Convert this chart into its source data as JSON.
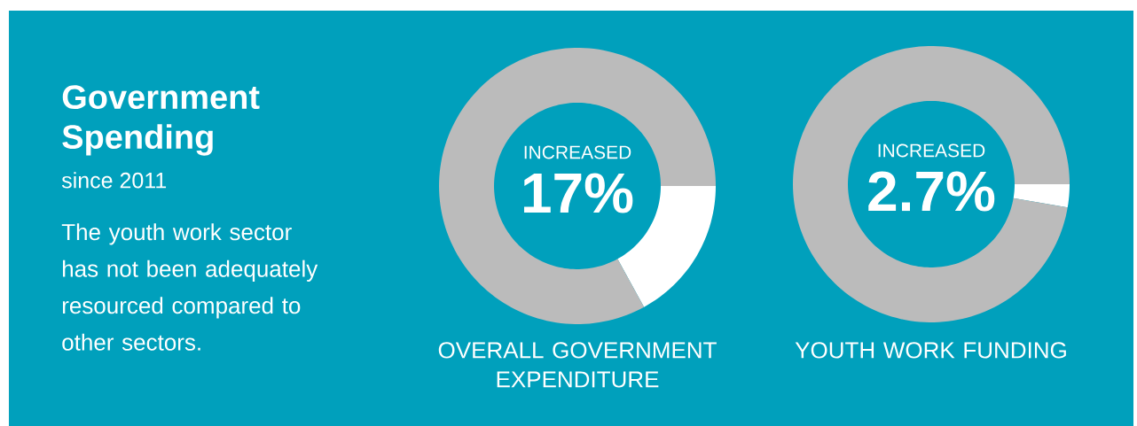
{
  "chart_data": [
    {
      "type": "other",
      "title": "Government Spending",
      "subtitle": "since 2011",
      "annotations": [
        "The youth work sector has not been adequately resourced compared to other sectors."
      ]
    },
    {
      "type": "donut",
      "title": "OVERALL GOVERNMENT EXPENDITURE",
      "categories": [
        null,
        null
      ],
      "values": [
        17,
        83
      ],
      "colors": [
        "#ffffff",
        "#bbbbbb"
      ],
      "annotations": [
        "INCREASED",
        "17%"
      ]
    },
    {
      "type": "donut",
      "title": "YOUTH WORK FUNDING",
      "categories": [
        null,
        null
      ],
      "values": [
        2.7,
        97.3
      ],
      "colors": [
        "#ffffff",
        "#bbbbbb"
      ],
      "annotations": [
        "INCREASED",
        "2.7%"
      ]
    }
  ]
}
